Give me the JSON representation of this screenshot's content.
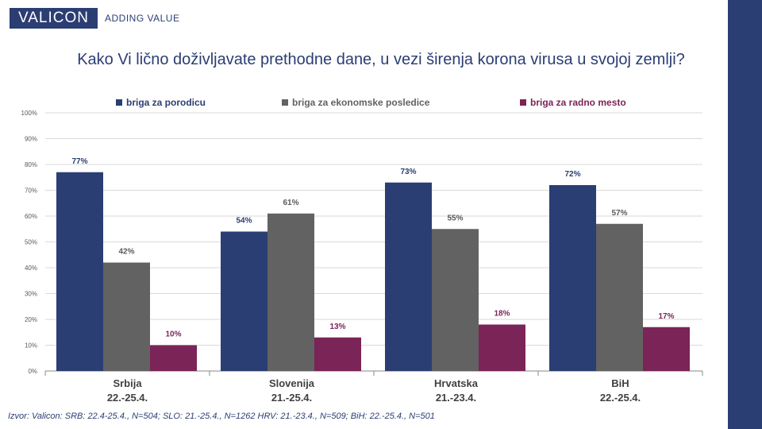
{
  "brand": {
    "logo_text": "VALICON",
    "tagline": "ADDING VALUE"
  },
  "colors": {
    "navy": "#2b3e73",
    "gray": "#626262",
    "purple": "#7b2457",
    "accent_bar": "#2b3e73"
  },
  "title": "Kako Vi lično doživljavate prethodne dane, u vezi širenja korona virusa u svojoj zemlji?",
  "footer": "Izvor: Valicon: SRB: 22.4-25.4., N=504; SLO: 21.-25.4., N=1262     HRV: 21.-23.4., N=509; BiH: 22.-25.4., N=501",
  "chart_data": {
    "type": "bar",
    "categories": [
      {
        "name": "Srbija",
        "period": "22.-25.4."
      },
      {
        "name": "Slovenija",
        "period": "21.-25.4."
      },
      {
        "name": "Hrvatska",
        "period": "21.-23.4."
      },
      {
        "name": "BiH",
        "period": "22.-25.4."
      }
    ],
    "series": [
      {
        "name": "briga za porodicu",
        "color": "#2b3e73",
        "values": [
          77,
          54,
          73,
          72
        ],
        "labels": [
          "77%",
          "54%",
          "73%",
          "72%"
        ]
      },
      {
        "name": "briga za ekonomske posledice",
        "color": "#626262",
        "values": [
          42,
          61,
          55,
          57
        ],
        "labels": [
          "42%",
          "61%",
          "55%",
          "57%"
        ]
      },
      {
        "name": "briga za radno mesto",
        "color": "#7b2457",
        "values": [
          10,
          13,
          18,
          17
        ],
        "labels": [
          "10%",
          "13%",
          "18%",
          "17%"
        ]
      }
    ],
    "ylim": [
      0,
      100
    ],
    "yticks": [
      "0%",
      "10%",
      "20%",
      "30%",
      "40%",
      "50%",
      "60%",
      "70%",
      "80%",
      "90%",
      "100%"
    ],
    "grid": true,
    "legend": "top"
  }
}
